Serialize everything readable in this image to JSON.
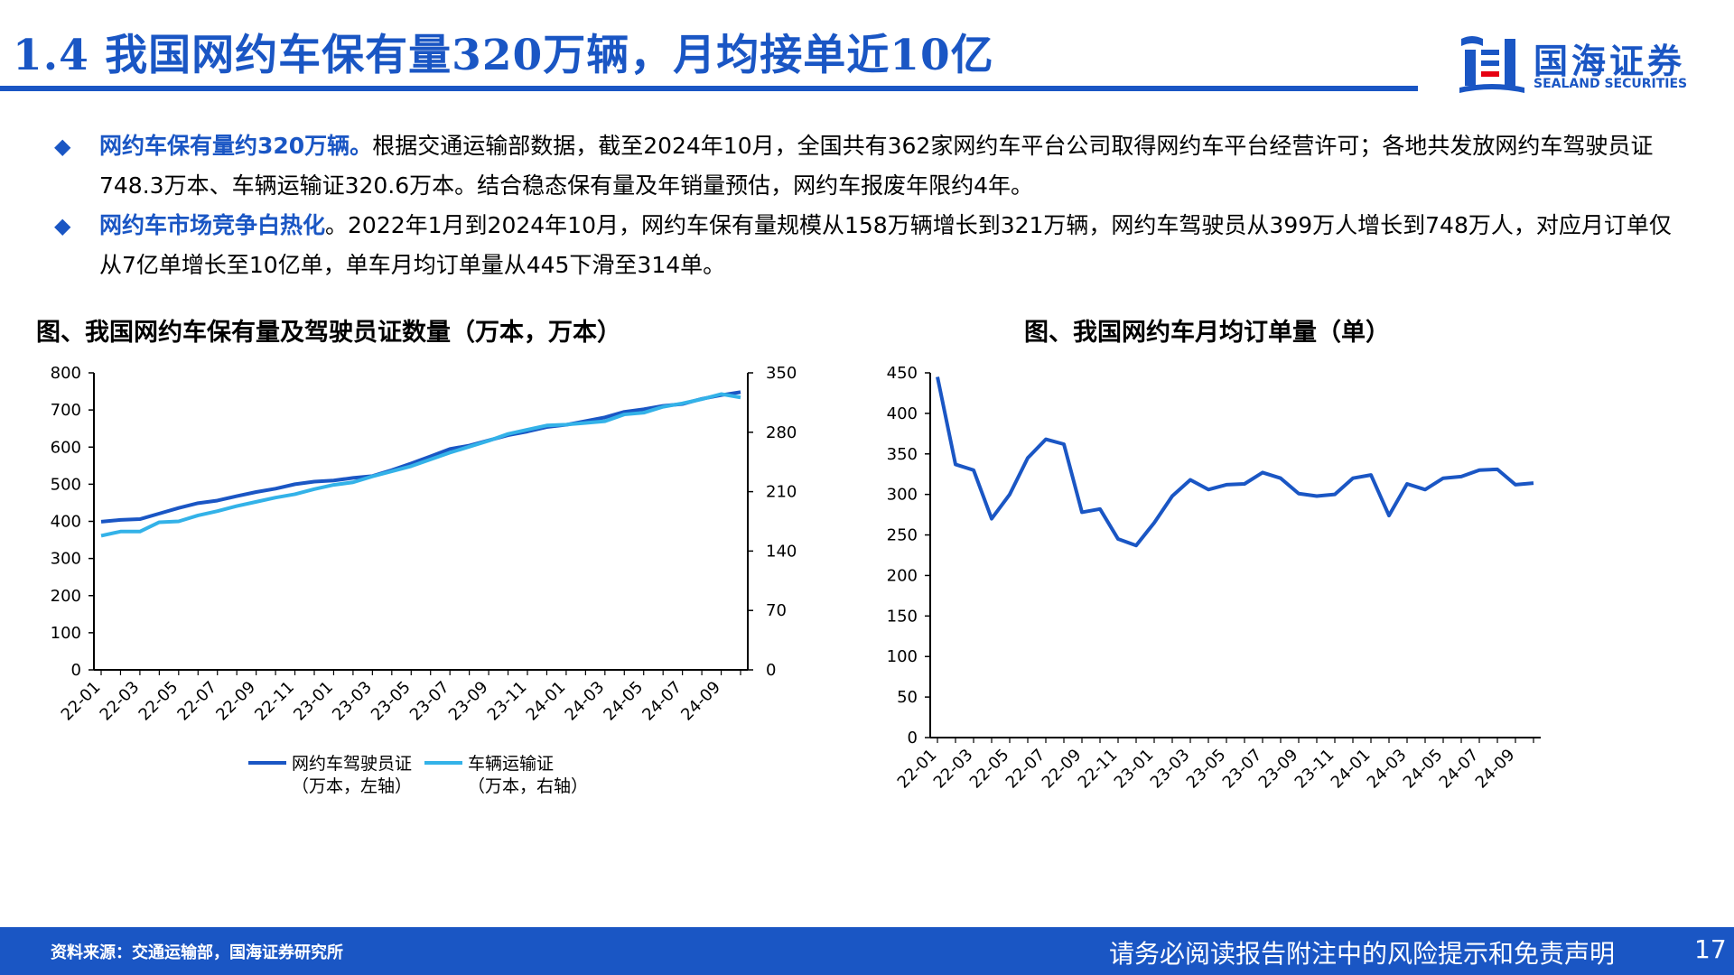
{
  "header": {
    "title": "1.4 我国网约车保有量320万辆，月均接单近10亿",
    "logo_cn": "国海证券",
    "logo_en": "SEALAND SECURITIES"
  },
  "bullets": [
    {
      "highlight": "网约车保有量约320万辆。",
      "text": "根据交通运输部数据，截至2024年10月，全国共有362家网约车平台公司取得网约车平台经营许可；各地共发放网约车驾驶员证748.3万本、车辆运输证320.6万本。结合稳态保有量及年销量预估，网约车报废年限约4年。"
    },
    {
      "highlight": "网约车市场竞争白热化",
      "text": "。2022年1月到2024年10月，网约车保有量规模从158万辆增长到321万辆，网约车驾驶员从399万人增长到748万人，对应月订单仅从7亿单增长至10亿单，单车月均订单量从445下滑至314单。"
    }
  ],
  "footer": {
    "source": "资料来源：交通运输部，国海证券研究所",
    "disclaimer": "请务必阅读报告附注中的风险提示和免责声明",
    "page": "17"
  },
  "colors": {
    "brand": "#1a56c4",
    "series1": "#1a56c4",
    "series2": "#33b2e8"
  },
  "chart_data": [
    {
      "type": "line",
      "title": "图、我国网约车保有量及驾驶员证数量（万本，万本）",
      "x": [
        "22-01",
        "22-02",
        "22-03",
        "22-04",
        "22-05",
        "22-06",
        "22-07",
        "22-08",
        "22-09",
        "22-10",
        "22-11",
        "22-12",
        "23-01",
        "23-02",
        "23-03",
        "23-04",
        "23-05",
        "23-06",
        "23-07",
        "23-08",
        "23-09",
        "23-10",
        "23-11",
        "23-12",
        "24-01",
        "24-02",
        "24-03",
        "24-04",
        "24-05",
        "24-06",
        "24-07",
        "24-08",
        "24-09",
        "24-10"
      ],
      "x_tick_labels": [
        "22-01",
        "22-03",
        "22-05",
        "22-07",
        "22-09",
        "22-11",
        "23-01",
        "23-03",
        "23-05",
        "23-07",
        "23-09",
        "23-11",
        "24-01",
        "24-03",
        "24-05",
        "24-07",
        "24-09"
      ],
      "y_left": {
        "ticks": [
          0,
          100,
          200,
          300,
          400,
          500,
          600,
          700,
          800
        ],
        "ylim": [
          0,
          800
        ]
      },
      "y_right": {
        "ticks": [
          0,
          70,
          140,
          210,
          280,
          350
        ],
        "ylim": [
          0,
          350
        ]
      },
      "series": [
        {
          "name": "网约车驾驶员证",
          "legend_sub": "（万本，左轴）",
          "axis": "left",
          "values": [
            399,
            404,
            406,
            421,
            436,
            449,
            456,
            468,
            479,
            488,
            500,
            507,
            510,
            517,
            522,
            538,
            556,
            575,
            595,
            604,
            618,
            632,
            642,
            654,
            660,
            670,
            680,
            695,
            702,
            711,
            716,
            730,
            740,
            748
          ]
        },
        {
          "name": "车辆运输证",
          "legend_sub": "（万本，右轴）",
          "axis": "right",
          "values": [
            158,
            163,
            163,
            174,
            175,
            182,
            187,
            193,
            198,
            203,
            207,
            213,
            218,
            221,
            228,
            234,
            240,
            248,
            256,
            263,
            270,
            278,
            283,
            288,
            289,
            291,
            293,
            301,
            303,
            310,
            314,
            319,
            325,
            321
          ]
        }
      ],
      "legend_position": "bottom"
    },
    {
      "type": "line",
      "title": "图、我国网约车月均订单量（单）",
      "x": [
        "22-01",
        "22-02",
        "22-03",
        "22-04",
        "22-05",
        "22-06",
        "22-07",
        "22-08",
        "22-09",
        "22-10",
        "22-11",
        "22-12",
        "23-01",
        "23-02",
        "23-03",
        "23-04",
        "23-05",
        "23-06",
        "23-07",
        "23-08",
        "23-09",
        "23-10",
        "23-11",
        "23-12",
        "24-01",
        "24-02",
        "24-03",
        "24-04",
        "24-05",
        "24-06",
        "24-07",
        "24-08",
        "24-09",
        "24-10"
      ],
      "x_tick_labels": [
        "22-01",
        "22-03",
        "22-05",
        "22-07",
        "22-09",
        "22-11",
        "23-01",
        "23-03",
        "23-05",
        "23-07",
        "23-09",
        "23-11",
        "24-01",
        "24-03",
        "24-05",
        "24-07",
        "24-09"
      ],
      "y": {
        "ticks": [
          0,
          50,
          100,
          150,
          200,
          250,
          300,
          350,
          400,
          450
        ],
        "ylim": [
          0,
          450
        ]
      },
      "series": [
        {
          "values": [
            445,
            337,
            330,
            270,
            300,
            345,
            368,
            362,
            278,
            282,
            245,
            237,
            265,
            298,
            318,
            306,
            312,
            313,
            327,
            320,
            301,
            298,
            300,
            320,
            324,
            274,
            313,
            306,
            320,
            322,
            330,
            331,
            312,
            314
          ]
        }
      ]
    }
  ]
}
